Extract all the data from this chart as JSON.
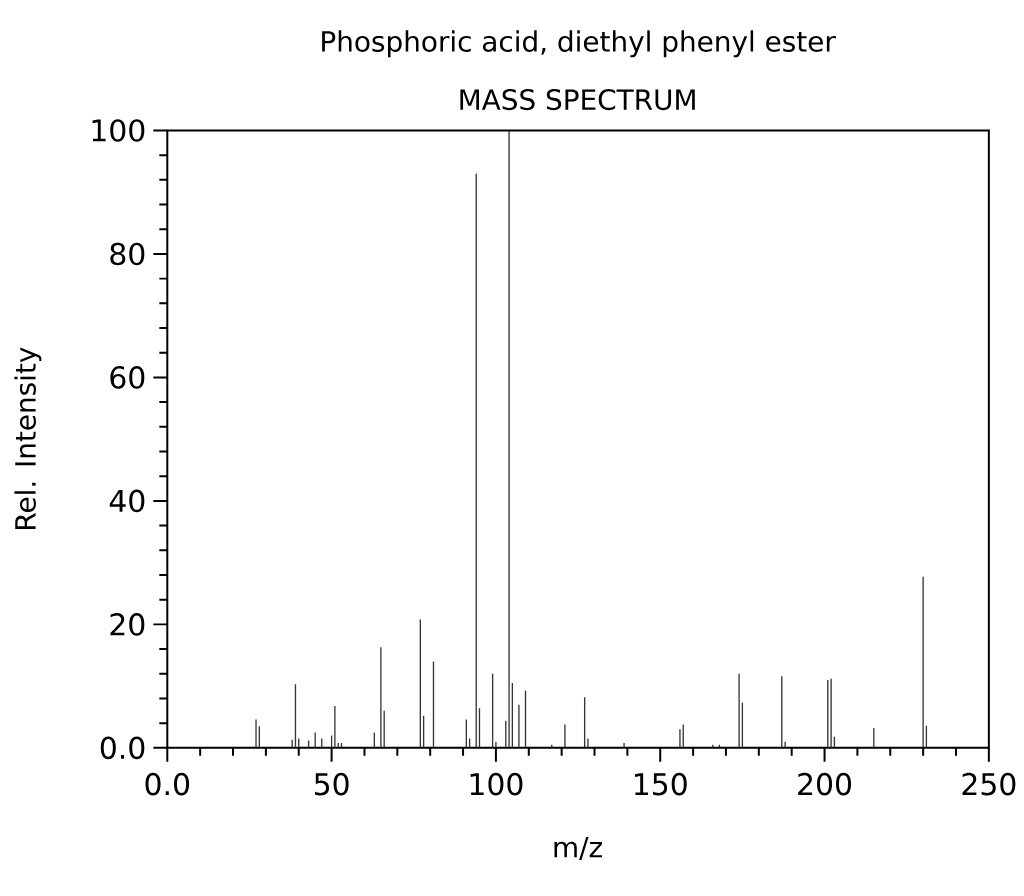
{
  "chart_data": {
    "type": "bar",
    "title": "Phosphoric acid, diethyl phenyl ester",
    "subtitle": "MASS SPECTRUM",
    "xlabel": "m/z",
    "ylabel": "Rel. Intensity",
    "color": "#333333",
    "x": [
      27,
      28,
      38,
      39,
      40,
      43,
      45,
      47,
      50,
      51,
      52,
      53,
      63,
      65,
      66,
      77,
      78,
      81,
      91,
      92,
      94,
      95,
      99,
      100,
      103,
      104,
      105,
      107,
      109,
      117,
      121,
      127,
      128,
      139,
      156,
      157,
      166,
      168,
      174,
      175,
      187,
      188,
      201,
      202,
      203,
      215,
      230,
      231
    ],
    "values": [
      4.6,
      3.5,
      1.3,
      10.3,
      1.5,
      1.2,
      2.5,
      1.5,
      2,
      6.8,
      0.8,
      0.8,
      2.5,
      16.3,
      6,
      20.8,
      5.2,
      14,
      4.6,
      1.5,
      93,
      6.4,
      12,
      1,
      4.4,
      100,
      10.5,
      7,
      9.3,
      0.5,
      3.8,
      8.2,
      1.5,
      0.8,
      3,
      3.8,
      0.5,
      0.5,
      12,
      7.3,
      11.6,
      1,
      11,
      11.2,
      1.8,
      3.2,
      27.7,
      3.6
    ],
    "xlim": [
      0,
      250
    ],
    "ylim": [
      0,
      100
    ],
    "xticks": [
      {
        "value": 0,
        "label": "0.0"
      },
      {
        "value": 10,
        "label": null
      },
      {
        "value": 20,
        "label": null
      },
      {
        "value": 30,
        "label": null
      },
      {
        "value": 40,
        "label": null
      },
      50,
      {
        "value": 60,
        "label": null
      },
      {
        "value": 70,
        "label": null
      },
      {
        "value": 80,
        "label": null
      },
      {
        "value": 90,
        "label": null
      },
      100,
      {
        "value": 110,
        "label": null
      },
      {
        "value": 120,
        "label": null
      },
      {
        "value": 130,
        "label": null
      },
      {
        "value": 140,
        "label": null
      },
      150,
      {
        "value": 160,
        "label": null
      },
      {
        "value": 170,
        "label": null
      },
      {
        "value": 180,
        "label": null
      },
      {
        "value": 190,
        "label": null
      },
      200,
      {
        "value": 210,
        "label": null
      },
      {
        "value": 220,
        "label": null
      },
      {
        "value": 230,
        "label": null
      },
      {
        "value": 240,
        "label": null
      },
      250
    ],
    "yticks": [
      {
        "value": 0,
        "label": "0.0"
      },
      {
        "value": 4,
        "label": null
      },
      {
        "value": 8,
        "label": null
      },
      {
        "value": 12,
        "label": null
      },
      {
        "value": 16,
        "label": null
      },
      20,
      {
        "value": 24,
        "label": null
      },
      {
        "value": 28,
        "label": null
      },
      {
        "value": 32,
        "label": null
      },
      {
        "value": 36,
        "label": null
      },
      40,
      {
        "value": 44,
        "label": null
      },
      {
        "value": 48,
        "label": null
      },
      {
        "value": 52,
        "label": null
      },
      {
        "value": 56,
        "label": null
      },
      60,
      {
        "value": 64,
        "label": null
      },
      {
        "value": 68,
        "label": null
      },
      {
        "value": 72,
        "label": null
      },
      {
        "value": 76,
        "label": null
      },
      80,
      {
        "value": 84,
        "label": null
      },
      {
        "value": 88,
        "label": null
      },
      {
        "value": 92,
        "label": null
      },
      {
        "value": 96,
        "label": null
      },
      100
    ]
  }
}
